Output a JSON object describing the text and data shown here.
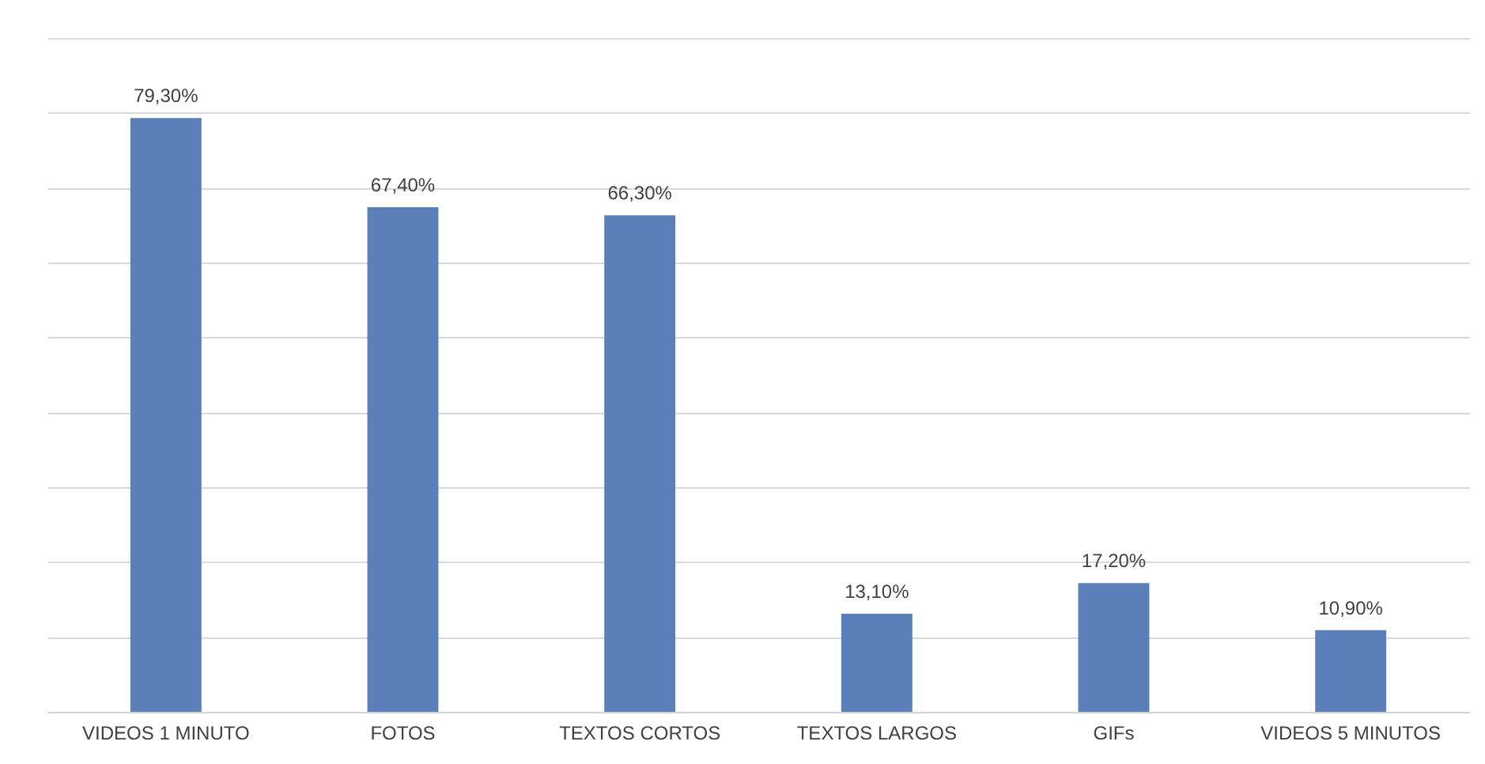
{
  "chart_data": {
    "type": "bar",
    "categories": [
      "VIDEOS 1 MINUTO",
      "FOTOS",
      "TEXTOS CORTOS",
      "TEXTOS LARGOS",
      "GIFs",
      "VIDEOS 5 MINUTOS"
    ],
    "values": [
      79.3,
      67.4,
      66.3,
      13.1,
      17.2,
      10.9
    ],
    "value_labels": [
      "79,30%",
      "67,40%",
      "66,30%",
      "13,10%",
      "17,20%",
      "10,90%"
    ],
    "color": "#5b80b9",
    "ylim": [
      0,
      90
    ],
    "yticks": [
      {
        "value": 0,
        "label": null
      },
      {
        "value": 10,
        "label": null
      },
      {
        "value": 20,
        "label": null
      },
      {
        "value": 30,
        "label": null
      },
      {
        "value": 40,
        "label": null
      },
      {
        "value": 50,
        "label": null
      },
      {
        "value": 60,
        "label": null
      },
      {
        "value": 70,
        "label": null
      },
      {
        "value": 80,
        "label": null
      },
      {
        "value": 90,
        "label": null
      }
    ],
    "grid": "y",
    "tick_labels": "x"
  }
}
